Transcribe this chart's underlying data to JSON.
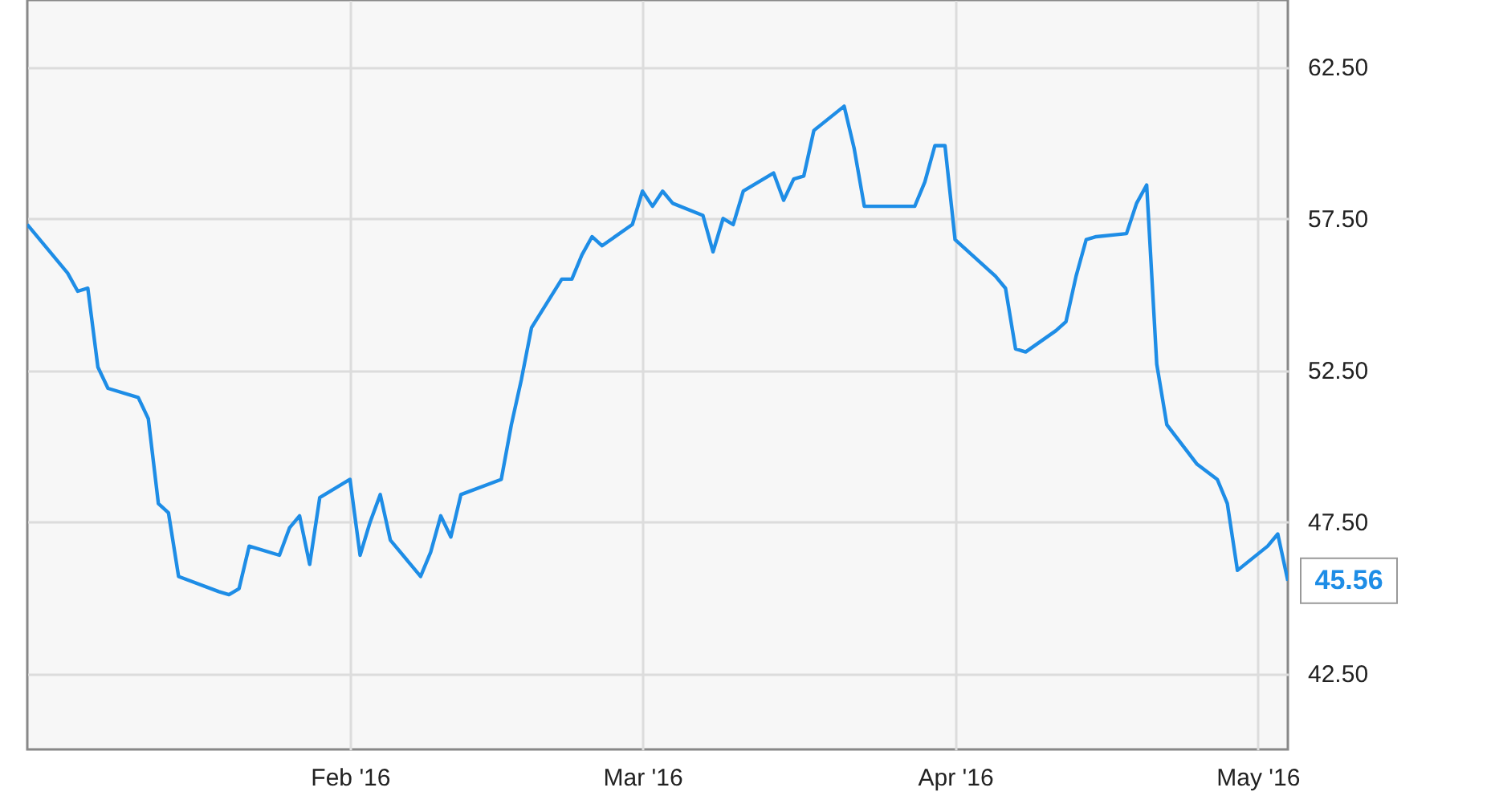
{
  "chart_data": {
    "type": "line",
    "x": [
      "2015-12-31",
      "2016-01-04",
      "2016-01-05",
      "2016-01-06",
      "2016-01-07",
      "2016-01-08",
      "2016-01-11",
      "2016-01-12",
      "2016-01-13",
      "2016-01-14",
      "2016-01-15",
      "2016-01-19",
      "2016-01-20",
      "2016-01-21",
      "2016-01-22",
      "2016-01-25",
      "2016-01-26",
      "2016-01-27",
      "2016-01-28",
      "2016-01-29",
      "2016-02-01",
      "2016-02-02",
      "2016-02-03",
      "2016-02-04",
      "2016-02-05",
      "2016-02-08",
      "2016-02-09",
      "2016-02-10",
      "2016-02-11",
      "2016-02-12",
      "2016-02-16",
      "2016-02-17",
      "2016-02-18",
      "2016-02-19",
      "2016-02-22",
      "2016-02-23",
      "2016-02-24",
      "2016-02-25",
      "2016-02-26",
      "2016-02-29",
      "2016-03-01",
      "2016-03-02",
      "2016-03-03",
      "2016-03-04",
      "2016-03-07",
      "2016-03-08",
      "2016-03-09",
      "2016-03-10",
      "2016-03-11",
      "2016-03-14",
      "2016-03-15",
      "2016-03-16",
      "2016-03-17",
      "2016-03-18",
      "2016-03-21",
      "2016-03-22",
      "2016-03-23",
      "2016-03-28",
      "2016-03-29",
      "2016-03-30",
      "2016-03-31",
      "2016-04-01",
      "2016-04-05",
      "2016-04-06",
      "2016-04-07",
      "2016-04-08",
      "2016-04-11",
      "2016-04-12",
      "2016-04-13",
      "2016-04-14",
      "2016-04-15",
      "2016-04-18",
      "2016-04-19",
      "2016-04-20",
      "2016-04-21",
      "2016-04-22",
      "2016-04-25",
      "2016-04-27",
      "2016-04-28",
      "2016-04-29",
      "2016-05-02",
      "2016-05-03",
      "2016-05-04"
    ],
    "series": [
      {
        "color": "#1e8de6",
        "values": [
          57.3,
          55.7,
          55.1,
          55.2,
          52.6,
          51.9,
          51.6,
          50.9,
          48.1,
          47.8,
          45.7,
          45.2,
          45.1,
          45.3,
          46.7,
          46.4,
          47.3,
          47.7,
          46.1,
          48.3,
          48.9,
          46.4,
          47.5,
          48.4,
          46.9,
          45.7,
          46.5,
          47.7,
          47.0,
          48.4,
          48.9,
          50.7,
          52.2,
          53.9,
          55.5,
          55.5,
          56.3,
          56.9,
          56.6,
          57.3,
          58.4,
          57.9,
          58.4,
          58.0,
          57.6,
          56.4,
          57.5,
          57.3,
          58.4,
          59.0,
          58.1,
          58.8,
          58.9,
          60.4,
          61.2,
          59.8,
          57.9,
          57.9,
          58.7,
          59.9,
          59.9,
          56.8,
          55.6,
          55.2,
          53.2,
          53.1,
          53.8,
          54.1,
          55.6,
          56.8,
          56.9,
          57.0,
          58.0,
          58.6,
          52.7,
          50.7,
          49.4,
          48.9,
          48.1,
          45.9,
          46.7,
          47.1,
          45.56
        ],
        "value_labels": [
          null,
          null,
          null,
          null,
          null,
          null,
          null,
          null,
          null,
          null,
          null,
          null,
          null,
          null,
          null,
          null,
          null,
          null,
          null,
          null,
          null,
          null,
          null,
          null,
          null,
          null,
          null,
          null,
          null,
          null,
          null,
          null,
          null,
          null,
          null,
          null,
          null,
          null,
          null,
          null,
          null,
          null,
          null,
          null,
          null,
          null,
          null,
          null,
          null,
          null,
          null,
          null,
          null,
          null,
          null,
          null,
          null,
          null,
          null,
          null,
          null,
          null,
          null,
          null,
          null,
          null,
          null,
          null,
          null,
          null,
          null,
          null,
          null,
          null,
          null,
          null,
          null,
          null,
          null,
          null,
          null,
          null,
          "45.56"
        ]
      }
    ],
    "xlim": [
      "2015-12-31",
      "2016-05-04"
    ],
    "xticks": [
      {
        "value": "2016-02-01",
        "label": "Feb '16"
      },
      {
        "value": "2016-03-01",
        "label": "Mar '16"
      },
      {
        "value": "2016-04-01",
        "label": "Apr '16"
      },
      {
        "value": "2016-05-01",
        "label": "May '16"
      }
    ],
    "ylim": [
      40,
      64.7
    ],
    "yticks": [
      {
        "value": 42.5,
        "label": "42.50"
      },
      {
        "value": 47.5,
        "label": "47.50"
      },
      {
        "value": 52.5,
        "label": "52.50"
      },
      {
        "value": 57.5,
        "label": "57.50"
      },
      {
        "value": 62.5,
        "label": "62.50"
      }
    ],
    "grid": true
  }
}
